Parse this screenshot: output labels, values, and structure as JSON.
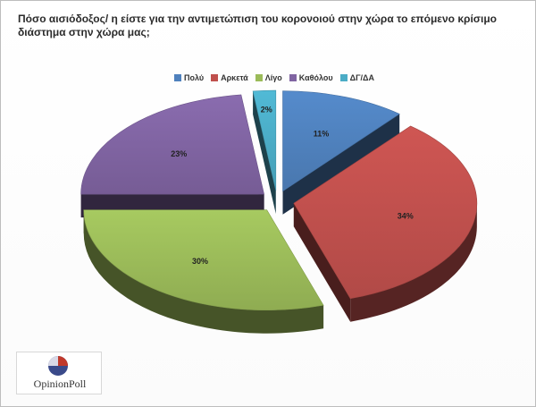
{
  "chart_data": {
    "type": "pie",
    "title": "Πόσο αισιόδοξος/ η είστε για την αντιμετώπιση του κορονοιού στην χώρα το επόμενο κρίσιμο διάστημα στην χώρα μας;",
    "categories": [
      "Πολύ",
      "Αρκετά",
      "Λίγο",
      "Καθόλου",
      "ΔΓ/ΔΑ"
    ],
    "values": [
      11,
      34,
      30,
      23,
      2
    ],
    "labels": [
      "11%",
      "34%",
      "30%",
      "23%",
      "2%"
    ],
    "colors": [
      "#4f81bd",
      "#c0504d",
      "#9bbb59",
      "#8064a2",
      "#4bacc6"
    ],
    "legend": "top-center",
    "exploded": true,
    "three_d": true
  },
  "branding": {
    "logo_text": "OpinionPoll",
    "logo_icon": "opinionpoll-logo-icon"
  }
}
